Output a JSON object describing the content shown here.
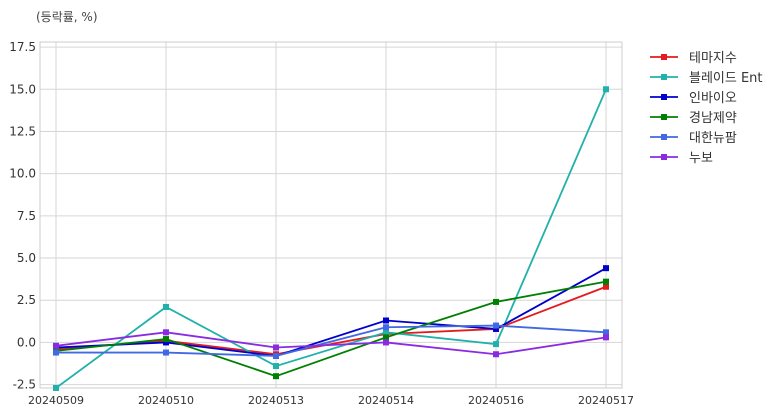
{
  "chart_data": {
    "type": "line",
    "unit_note": "(등락률, %)",
    "categories": [
      "20240509",
      "20240510",
      "20240513",
      "20240514",
      "20240516",
      "20240517"
    ],
    "ylim": [
      -2.7,
      17.8
    ],
    "yticks": [
      -2.5,
      0.0,
      2.5,
      5.0,
      7.5,
      10.0,
      12.5,
      15.0,
      17.5
    ],
    "ytick_labels": [
      "-2.5",
      "0.0",
      "2.5",
      "5.0",
      "7.5",
      "10.0",
      "12.5",
      "15.0",
      "17.5"
    ],
    "grid": true,
    "legend_position": "outside-top-right",
    "series": [
      {
        "name": "테마지수",
        "color": "#e41a1c",
        "values": [
          -0.4,
          0.1,
          -0.7,
          0.5,
          0.8,
          3.3
        ]
      },
      {
        "name": "블레이드 Ent",
        "color": "#20b2aa",
        "values": [
          -2.7,
          2.1,
          -1.4,
          0.6,
          -0.1,
          15.0
        ]
      },
      {
        "name": "인바이오",
        "color": "#0000cd",
        "values": [
          -0.3,
          0.0,
          -0.8,
          1.3,
          0.8,
          4.4
        ]
      },
      {
        "name": "경남제약",
        "color": "#008000",
        "values": [
          -0.5,
          0.2,
          -2.0,
          0.3,
          2.4,
          3.6
        ]
      },
      {
        "name": "대한뉴팜",
        "color": "#4169e1",
        "values": [
          -0.6,
          -0.6,
          -0.8,
          0.9,
          1.0,
          0.6
        ]
      },
      {
        "name": "누보",
        "color": "#8a2be2",
        "values": [
          -0.2,
          0.6,
          -0.3,
          0.0,
          -0.7,
          0.3
        ]
      }
    ]
  }
}
